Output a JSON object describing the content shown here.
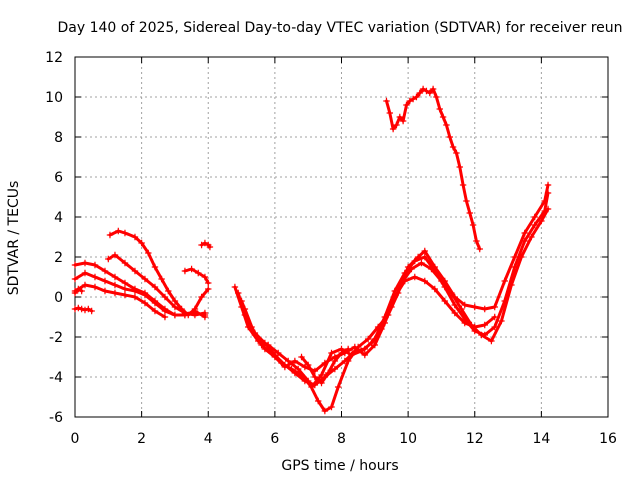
{
  "chart_data": {
    "type": "scatter",
    "title": "Day 140 of 2025, Sidereal Day-to-day VTEC variation (SDTVAR) for receiver reun",
    "xlabel": "GPS time / hours",
    "ylabel": "SDTVAR / TECUs",
    "xlim": [
      0,
      16
    ],
    "ylim": [
      -6,
      12
    ],
    "xticks": [
      0,
      2,
      4,
      6,
      8,
      10,
      12,
      14,
      16
    ],
    "yticks": [
      -6,
      -4,
      -2,
      0,
      2,
      4,
      6,
      8,
      10,
      12
    ],
    "grid": true,
    "marker": "plus",
    "color": "#ff0000",
    "series": [
      {
        "name": "s1",
        "x": [
          0.0,
          0.1,
          0.2,
          0.3,
          0.4,
          0.5
        ],
        "y": [
          -0.6,
          -0.55,
          -0.6,
          -0.65,
          -0.6,
          -0.7
        ]
      },
      {
        "name": "s2",
        "x": [
          0.0,
          0.1,
          0.2
        ],
        "y": [
          0.2,
          0.4,
          0.3
        ]
      },
      {
        "name": "s3",
        "x": [
          0.0,
          0.3,
          0.6,
          0.9,
          1.2,
          1.5,
          1.8,
          2.1,
          2.4,
          2.7,
          3.0,
          3.3,
          3.6,
          3.9
        ],
        "y": [
          1.6,
          1.7,
          1.6,
          1.3,
          1.0,
          0.7,
          0.4,
          0.2,
          -0.2,
          -0.6,
          -0.9,
          -0.9,
          -0.8,
          -0.9
        ]
      },
      {
        "name": "s4",
        "x": [
          0.0,
          0.3,
          0.6,
          0.9,
          1.2,
          1.5,
          1.8,
          2.1,
          2.4,
          2.7,
          3.0,
          3.3,
          3.6,
          3.9
        ],
        "y": [
          0.9,
          1.2,
          1.0,
          0.8,
          0.6,
          0.4,
          0.3,
          0.1,
          -0.3,
          -0.7,
          -0.9,
          -0.9,
          -0.7,
          -1.0
        ]
      },
      {
        "name": "s5",
        "x": [
          0.0,
          0.3,
          0.6,
          0.9,
          1.2,
          1.5,
          1.8,
          2.1,
          2.4,
          2.7
        ],
        "y": [
          0.3,
          0.6,
          0.5,
          0.3,
          0.2,
          0.1,
          0.0,
          -0.3,
          -0.7,
          -1.0
        ]
      },
      {
        "name": "s6",
        "x": [
          1.0,
          1.2,
          1.5,
          1.8,
          2.1,
          2.4,
          2.7,
          3.0,
          3.3,
          3.6,
          3.9
        ],
        "y": [
          1.9,
          2.1,
          1.7,
          1.3,
          0.9,
          0.5,
          0.0,
          -0.5,
          -0.8,
          -0.9,
          -0.8
        ]
      },
      {
        "name": "s7",
        "x": [
          1.05,
          1.3,
          1.5,
          1.8,
          2.0,
          2.2,
          2.4,
          2.6,
          2.8,
          3.0,
          3.2,
          3.4,
          3.6,
          3.8,
          4.0
        ],
        "y": [
          3.1,
          3.3,
          3.2,
          3.0,
          2.7,
          2.2,
          1.5,
          0.9,
          0.3,
          -0.2,
          -0.6,
          -0.9,
          -0.6,
          0.0,
          0.4
        ]
      },
      {
        "name": "s8",
        "x": [
          3.3,
          3.5,
          3.7,
          3.9,
          4.0
        ],
        "y": [
          1.3,
          1.4,
          1.2,
          1.0,
          0.7
        ]
      },
      {
        "name": "s9",
        "x": [
          3.8,
          3.9,
          4.0,
          4.05
        ],
        "y": [
          2.6,
          2.7,
          2.6,
          2.5
        ]
      },
      {
        "name": "s10",
        "x": [
          4.8,
          5.0,
          5.2,
          5.5,
          5.8,
          6.1,
          6.4,
          6.7,
          7.0,
          7.3,
          7.5,
          7.7,
          7.9,
          8.2,
          8.5,
          8.8,
          9.1,
          9.4,
          9.7,
          10.0,
          10.3,
          10.5,
          10.8,
          11.1,
          11.4,
          11.7,
          12.0,
          12.3,
          12.6,
          12.9,
          13.2,
          13.5,
          13.8,
          14.1,
          14.2
        ],
        "y": [
          0.5,
          -0.5,
          -1.5,
          -2.2,
          -2.4,
          -2.8,
          -3.2,
          -3.6,
          -4.2,
          -5.2,
          -5.7,
          -5.5,
          -4.5,
          -3.2,
          -2.5,
          -2.1,
          -1.5,
          -0.9,
          0.2,
          1.5,
          2.0,
          2.3,
          1.5,
          0.8,
          0.0,
          -0.4,
          -0.5,
          -0.6,
          -0.5,
          0.8,
          2.0,
          3.2,
          4.0,
          4.8,
          5.6
        ]
      },
      {
        "name": "s11",
        "x": [
          4.9,
          5.1,
          5.4,
          5.7,
          6.0,
          6.3,
          6.6,
          6.9,
          7.2,
          7.5,
          7.8,
          8.1,
          8.4,
          8.7,
          9.0,
          9.3,
          9.6,
          9.9,
          10.2,
          10.5,
          10.8,
          11.1,
          11.4,
          11.7,
          12.0,
          12.3,
          12.6,
          12.9,
          13.2,
          13.5,
          13.8,
          14.1,
          14.2
        ],
        "y": [
          0.2,
          -0.9,
          -1.8,
          -2.3,
          -2.9,
          -3.4,
          -3.8,
          -4.2,
          -4.4,
          -4.0,
          -3.6,
          -3.2,
          -2.7,
          -2.6,
          -2.1,
          -1.0,
          0.3,
          1.2,
          1.8,
          2.0,
          1.3,
          0.5,
          -0.4,
          -1.1,
          -1.7,
          -1.9,
          -1.5,
          -0.2,
          1.5,
          2.8,
          3.6,
          4.3,
          5.2
        ]
      },
      {
        "name": "s12",
        "x": [
          5.0,
          5.3,
          5.6,
          5.9,
          6.2,
          6.5,
          6.8,
          7.1,
          7.4,
          7.7,
          8.0,
          8.3,
          8.6,
          8.9,
          9.2,
          9.5,
          9.8,
          10.1,
          10.4,
          10.7,
          11.0,
          11.3,
          11.6,
          11.9,
          12.2,
          12.5,
          12.8,
          13.1,
          13.4,
          13.7,
          14.0,
          14.2
        ],
        "y": [
          -0.2,
          -1.5,
          -2.4,
          -2.8,
          -3.3,
          -3.6,
          -3.9,
          -4.5,
          -3.9,
          -2.8,
          -2.6,
          -2.9,
          -2.7,
          -2.3,
          -1.6,
          -0.5,
          0.7,
          1.4,
          1.7,
          1.4,
          0.8,
          0.2,
          -0.6,
          -1.4,
          -1.9,
          -2.2,
          -1.2,
          0.6,
          2.0,
          3.0,
          3.8,
          4.4
        ]
      },
      {
        "name": "s13",
        "x": [
          5.1,
          5.4,
          5.7,
          6.0,
          6.3,
          6.6,
          6.9,
          7.2,
          7.5,
          7.8,
          8.1,
          8.4,
          8.7,
          9.0,
          9.3,
          9.6,
          9.9,
          10.2,
          10.5,
          10.8,
          11.1,
          11.4,
          11.7,
          12.0,
          12.3,
          12.6
        ],
        "y": [
          -0.6,
          -1.9,
          -2.6,
          -3.0,
          -3.5,
          -3.2,
          -3.5,
          -3.7,
          -3.3,
          -3.0,
          -2.8,
          -2.5,
          -2.9,
          -2.4,
          -1.3,
          0.0,
          0.8,
          1.0,
          0.8,
          0.4,
          -0.2,
          -0.8,
          -1.3,
          -1.5,
          -1.4,
          -1.0
        ]
      },
      {
        "name": "s14",
        "x": [
          6.8,
          7.0,
          7.2,
          7.4,
          7.6,
          7.8,
          8.0,
          8.2
        ],
        "y": [
          -3.0,
          -3.4,
          -4.0,
          -4.3,
          -3.8,
          -3.2,
          -2.8,
          -2.6
        ]
      },
      {
        "name": "s15",
        "x": [
          9.35,
          9.45,
          9.55,
          9.65,
          9.75,
          9.85,
          9.95,
          10.05,
          10.15,
          10.25,
          10.35,
          10.45,
          10.55,
          10.65,
          10.75,
          10.85,
          10.95,
          11.05,
          11.15,
          11.25,
          11.35,
          11.45,
          11.55,
          11.65,
          11.75,
          11.85,
          11.95,
          12.05,
          12.15
        ],
        "y": [
          9.8,
          9.2,
          8.4,
          8.6,
          9.0,
          8.8,
          9.6,
          9.8,
          9.9,
          10.0,
          10.2,
          10.4,
          10.3,
          10.2,
          10.4,
          10.0,
          9.4,
          9.0,
          8.6,
          8.0,
          7.5,
          7.2,
          6.5,
          5.6,
          4.8,
          4.2,
          3.6,
          2.8,
          2.4
        ]
      }
    ]
  }
}
